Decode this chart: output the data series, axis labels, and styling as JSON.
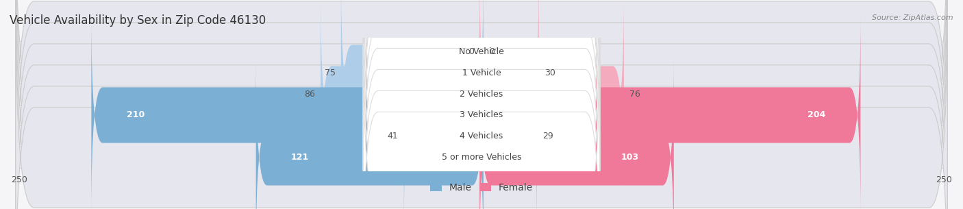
{
  "title": "Vehicle Availability by Sex in Zip Code 46130",
  "source": "Source: ZipAtlas.com",
  "categories": [
    "No Vehicle",
    "1 Vehicle",
    "2 Vehicles",
    "3 Vehicles",
    "4 Vehicles",
    "5 or more Vehicles"
  ],
  "male_values": [
    0,
    75,
    86,
    210,
    41,
    121
  ],
  "female_values": [
    0,
    30,
    76,
    204,
    29,
    103
  ],
  "male_color": "#7bafd4",
  "female_color": "#f07898",
  "male_color_light": "#aecde8",
  "female_color_light": "#f5abbe",
  "bar_bg_color": "#e6e6ee",
  "label_bg_color": "#ffffff",
  "fig_bg_color": "#f5f5f8",
  "xlim": 250,
  "bar_height": 0.72,
  "title_fontsize": 12,
  "label_fontsize": 9,
  "value_fontsize": 9,
  "axis_tick_fontsize": 9,
  "source_fontsize": 8,
  "value_threshold": 100
}
